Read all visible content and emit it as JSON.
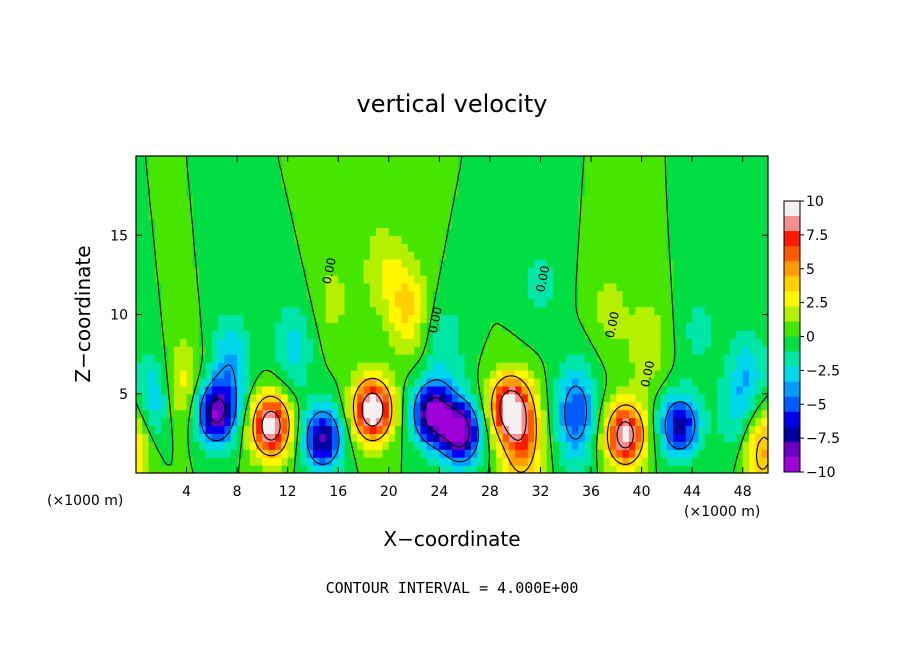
{
  "chart_data": {
    "type": "heatmap",
    "title": "vertical velocity",
    "xlabel": "X−coordinate",
    "ylabel": "Z−coordinate",
    "x_unit": "(×1000 m)",
    "x_unit_right": "(×1000 m)",
    "xlim": [
      0,
      50
    ],
    "ylim": [
      0,
      20
    ],
    "x_ticks": [
      4,
      8,
      12,
      16,
      20,
      24,
      28,
      32,
      36,
      40,
      44,
      48
    ],
    "y_ticks": [
      5,
      10,
      15
    ],
    "colorbar": {
      "levels": [
        10,
        7.5,
        5,
        2.5,
        0,
        -2.5,
        -5,
        -7.5,
        -10
      ],
      "labels": [
        "10",
        "7.5",
        "5",
        "2.5",
        "0",
        "−2.5",
        "−5",
        "−7.5",
        "−10"
      ],
      "colors": [
        "#f4f0f0",
        "#f49090",
        "#ff1a00",
        "#ff5a00",
        "#ff9c00",
        "#ffcf00",
        "#fff700",
        "#b4f000",
        "#46e600",
        "#00de44",
        "#00e6a8",
        "#00d7ea",
        "#009cff",
        "#005cff",
        "#0000ea",
        "#0000a0",
        "#6a00c8",
        "#a000d8"
      ]
    },
    "contour_label": "0.00",
    "contour_interval_text": "CONTOUR INTERVAL = 4.000E+00",
    "features": [
      {
        "x": 0.0,
        "z": 2.0,
        "w": 4.0
      },
      {
        "x": 1.3,
        "z": 4.5,
        "w": -4.0
      },
      {
        "x": 3.6,
        "z": 5.5,
        "w": 3.0
      },
      {
        "x": 6.3,
        "z": 3.8,
        "w": -8.5
      },
      {
        "x": 7.5,
        "z": 7.0,
        "w": -3.5
      },
      {
        "x": 10.7,
        "z": 3.0,
        "w": 10.0
      },
      {
        "x": 12.5,
        "z": 8.0,
        "w": -2.5
      },
      {
        "x": 14.8,
        "z": 2.2,
        "w": -8.0
      },
      {
        "x": 15.5,
        "z": 11.0,
        "w": 1.5
      },
      {
        "x": 18.7,
        "z": 4.0,
        "w": 10.5
      },
      {
        "x": 19.5,
        "z": 13.0,
        "w": 2.0
      },
      {
        "x": 21.5,
        "z": 10.5,
        "w": 3.5
      },
      {
        "x": 23.4,
        "z": 3.8,
        "w": -9.0
      },
      {
        "x": 25.7,
        "z": 2.6,
        "w": -9.5
      },
      {
        "x": 24.5,
        "z": 8.0,
        "w": -2.0
      },
      {
        "x": 29.5,
        "z": 4.2,
        "w": 8.5
      },
      {
        "x": 30.5,
        "z": 2.0,
        "w": 6.0
      },
      {
        "x": 32.0,
        "z": 12.0,
        "w": -1.5
      },
      {
        "x": 34.8,
        "z": 3.8,
        "w": -5.5
      },
      {
        "x": 37.5,
        "z": 10.5,
        "w": 1.5
      },
      {
        "x": 38.7,
        "z": 2.4,
        "w": 9.5
      },
      {
        "x": 40.5,
        "z": 8.0,
        "w": 2.0
      },
      {
        "x": 43.0,
        "z": 3.0,
        "w": -7.0
      },
      {
        "x": 44.5,
        "z": 9.0,
        "w": -1.5
      },
      {
        "x": 47.5,
        "z": 3.5,
        "w": -2.0
      },
      {
        "x": 49.5,
        "z": 1.5,
        "w": 5.0
      },
      {
        "x": 48.5,
        "z": 6.0,
        "w": -3.0
      }
    ]
  }
}
